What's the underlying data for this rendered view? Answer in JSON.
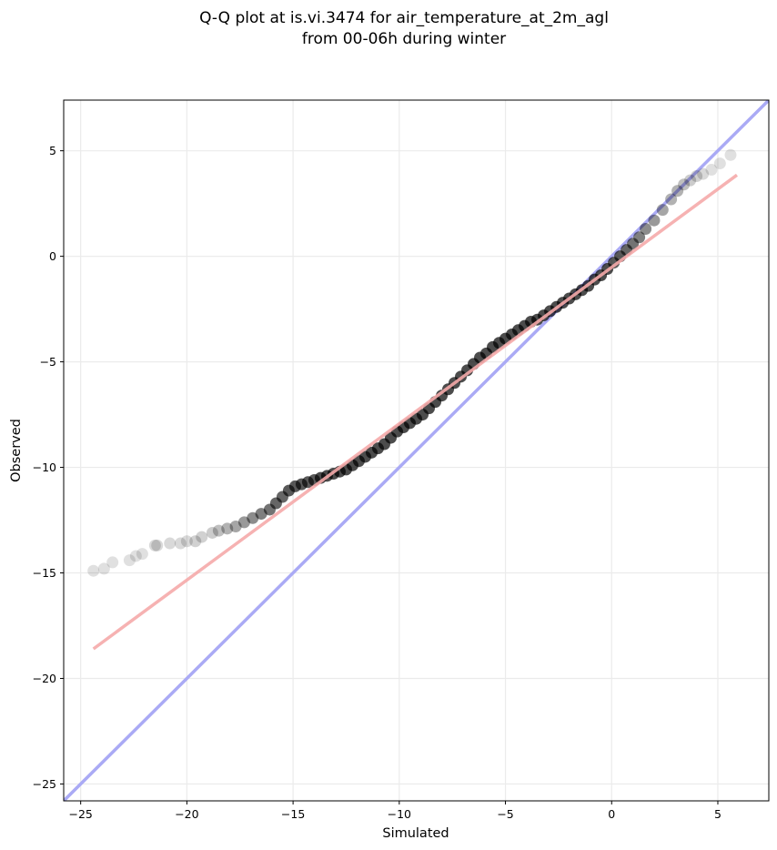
{
  "chart_data": {
    "type": "scatter",
    "title_line1": "Q-Q plot at is.vi.3474 for air_temperature_at_2m_agl",
    "title_line2": "from 00-06h during winter",
    "xlabel": "Simulated",
    "ylabel": "Observed",
    "xlim": [
      -25.8,
      7.4
    ],
    "ylim": [
      -25.8,
      7.4
    ],
    "xticks": [
      -25,
      -20,
      -15,
      -10,
      -5,
      0,
      5
    ],
    "yticks": [
      -25,
      -20,
      -15,
      -10,
      -5,
      0,
      5
    ],
    "xtick_labels": [
      "−25",
      "−20",
      "−15",
      "−10",
      "−5",
      "0",
      "5"
    ],
    "ytick_labels": [
      "−25",
      "−20",
      "−15",
      "−10",
      "−5",
      "0",
      "5"
    ],
    "grid": true,
    "legend": "none",
    "colors": {
      "points": "#000000",
      "identity_line": "#aaaaf5",
      "fit_line": "#f5aaaa",
      "grid": "#ebebeb"
    },
    "identity_line": {
      "x": [
        -25.8,
        7.4
      ],
      "y": [
        -25.8,
        7.4
      ]
    },
    "fit_line": {
      "x": [
        -24.4,
        5.9
      ],
      "y": [
        -18.6,
        3.85
      ]
    },
    "points": {
      "x": [
        -24.4,
        -23.9,
        -23.5,
        -22.7,
        -22.4,
        -22.1,
        -21.5,
        -21.4,
        -20.8,
        -20.3,
        -20.0,
        -19.6,
        -19.3,
        -18.8,
        -18.5,
        -18.1,
        -17.7,
        -17.3,
        -16.9,
        -16.5,
        -16.1,
        -15.8,
        -15.5,
        -15.2,
        -14.9,
        -14.6,
        -14.3,
        -14.0,
        -13.7,
        -13.4,
        -13.1,
        -12.8,
        -12.5,
        -12.2,
        -11.9,
        -11.6,
        -11.3,
        -11.0,
        -10.7,
        -10.4,
        -10.1,
        -9.8,
        -9.5,
        -9.2,
        -8.9,
        -8.6,
        -8.3,
        -8.0,
        -7.7,
        -7.4,
        -7.1,
        -6.8,
        -6.5,
        -6.2,
        -5.9,
        -5.6,
        -5.3,
        -5.0,
        -4.7,
        -4.4,
        -4.1,
        -3.8,
        -3.5,
        -3.2,
        -2.9,
        -2.6,
        -2.3,
        -2.0,
        -1.7,
        -1.4,
        -1.1,
        -0.8,
        -0.5,
        -0.2,
        0.1,
        0.4,
        0.7,
        1.0,
        1.3,
        1.6,
        2.0,
        2.4,
        2.8,
        3.1,
        3.4,
        3.7,
        4.0,
        4.3,
        4.7,
        5.1,
        5.6
      ],
      "y": [
        -14.9,
        -14.8,
        -14.5,
        -14.4,
        -14.2,
        -14.1,
        -13.7,
        -13.7,
        -13.6,
        -13.6,
        -13.5,
        -13.5,
        -13.3,
        -13.1,
        -13.0,
        -12.9,
        -12.8,
        -12.6,
        -12.4,
        -12.2,
        -12.0,
        -11.7,
        -11.4,
        -11.1,
        -10.9,
        -10.8,
        -10.7,
        -10.6,
        -10.5,
        -10.4,
        -10.3,
        -10.2,
        -10.1,
        -9.9,
        -9.7,
        -9.5,
        -9.3,
        -9.1,
        -8.9,
        -8.6,
        -8.3,
        -8.1,
        -7.9,
        -7.7,
        -7.5,
        -7.2,
        -6.9,
        -6.6,
        -6.3,
        -6.0,
        -5.7,
        -5.4,
        -5.1,
        -4.8,
        -4.6,
        -4.3,
        -4.1,
        -3.9,
        -3.7,
        -3.5,
        -3.3,
        -3.1,
        -3.0,
        -2.8,
        -2.6,
        -2.4,
        -2.2,
        -2.0,
        -1.8,
        -1.6,
        -1.4,
        -1.1,
        -0.9,
        -0.6,
        -0.3,
        0.0,
        0.3,
        0.6,
        0.9,
        1.3,
        1.7,
        2.2,
        2.7,
        3.1,
        3.4,
        3.6,
        3.8,
        3.9,
        4.1,
        4.4,
        4.8
      ],
      "opacity": [
        0.12,
        0.12,
        0.12,
        0.12,
        0.12,
        0.12,
        0.15,
        0.15,
        0.15,
        0.15,
        0.15,
        0.18,
        0.18,
        0.2,
        0.25,
        0.3,
        0.35,
        0.4,
        0.45,
        0.5,
        0.55,
        0.6,
        0.6,
        0.65,
        0.65,
        0.65,
        0.65,
        0.65,
        0.7,
        0.7,
        0.7,
        0.7,
        0.7,
        0.7,
        0.7,
        0.7,
        0.7,
        0.7,
        0.7,
        0.7,
        0.7,
        0.7,
        0.7,
        0.7,
        0.7,
        0.7,
        0.7,
        0.7,
        0.7,
        0.7,
        0.7,
        0.7,
        0.7,
        0.7,
        0.7,
        0.7,
        0.7,
        0.7,
        0.7,
        0.7,
        0.7,
        0.7,
        0.7,
        0.7,
        0.7,
        0.7,
        0.7,
        0.7,
        0.7,
        0.7,
        0.7,
        0.7,
        0.7,
        0.7,
        0.65,
        0.65,
        0.6,
        0.55,
        0.5,
        0.45,
        0.4,
        0.35,
        0.3,
        0.3,
        0.25,
        0.2,
        0.18,
        0.15,
        0.12,
        0.12,
        0.12
      ]
    }
  }
}
